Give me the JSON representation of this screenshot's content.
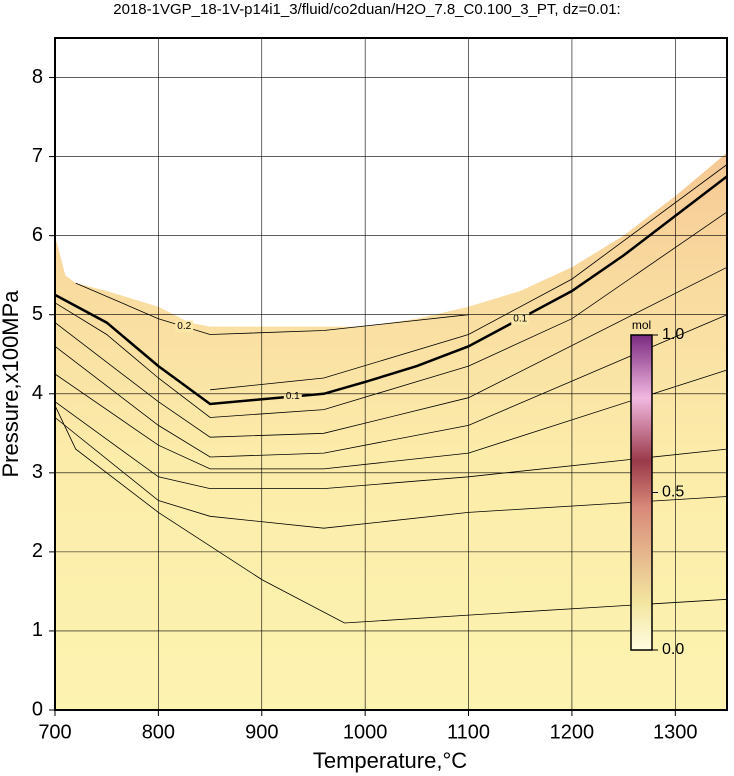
{
  "chart_data": {
    "type": "contour",
    "title": "2018-1VGP_18-1V-p14i1_3/fluid/co2duan/H2O_7.8_C0.100_3_PT, dz=0.01:",
    "x_label": "Temperature,°C",
    "y_label": "Pressure,x100MPa",
    "xlim": [
      700,
      1350
    ],
    "ylim": [
      0,
      8.5
    ],
    "xticks": [
      700,
      800,
      900,
      1000,
      1100,
      1200,
      1300
    ],
    "yticks": [
      0,
      1,
      2,
      3,
      4,
      5,
      6,
      7,
      8
    ],
    "grid": true,
    "field_boundary": {
      "x": [
        700,
        710,
        720,
        750,
        800,
        830,
        850,
        900,
        960,
        1000,
        1050,
        1100,
        1150,
        1200,
        1250,
        1300,
        1350
      ],
      "y": [
        6.0,
        5.5,
        5.4,
        5.3,
        5.1,
        4.9,
        4.85,
        4.85,
        4.85,
        4.85,
        4.95,
        5.1,
        5.3,
        5.6,
        6.0,
        6.5,
        7.05
      ]
    },
    "contours": [
      {
        "level": 0.2,
        "x": [
          720,
          800,
          850,
          960,
          1100
        ],
        "y": [
          5.4,
          4.95,
          4.75,
          4.8,
          5.0
        ]
      },
      {
        "level": 0.1,
        "x": [
          700,
          750,
          800,
          850,
          900,
          960,
          1000,
          1050,
          1100,
          1150,
          1200,
          1250,
          1300,
          1350
        ],
        "y": [
          5.25,
          4.9,
          4.35,
          3.87,
          3.93,
          4.0,
          4.15,
          4.35,
          4.6,
          4.95,
          5.3,
          5.75,
          6.25,
          6.75
        ]
      },
      {
        "x": [
          850,
          960,
          1100,
          1200,
          1350
        ],
        "y": [
          4.05,
          4.2,
          4.75,
          5.45,
          6.9
        ]
      },
      {
        "x": [
          700,
          750,
          800,
          850,
          960,
          1100,
          1200,
          1350
        ],
        "y": [
          5.15,
          4.75,
          4.2,
          3.7,
          3.8,
          4.35,
          4.95,
          6.3
        ]
      },
      {
        "x": [
          700,
          800,
          850,
          960,
          1100,
          1350
        ],
        "y": [
          4.9,
          3.9,
          3.45,
          3.5,
          3.95,
          5.6
        ]
      },
      {
        "x": [
          700,
          800,
          850,
          960,
          1100,
          1350
        ],
        "y": [
          4.6,
          3.6,
          3.2,
          3.25,
          3.6,
          5.0
        ]
      },
      {
        "x": [
          700,
          800,
          850,
          960,
          1100,
          1350
        ],
        "y": [
          4.25,
          3.35,
          3.05,
          3.05,
          3.25,
          4.3
        ]
      },
      {
        "x": [
          700,
          800,
          850,
          960,
          1100,
          1350
        ],
        "y": [
          3.9,
          2.95,
          2.8,
          2.8,
          2.95,
          3.3
        ]
      },
      {
        "x": [
          700,
          800,
          850,
          960,
          1100,
          1350
        ],
        "y": [
          3.7,
          2.65,
          2.45,
          2.3,
          2.5,
          2.7
        ]
      },
      {
        "x": [
          700,
          720,
          800,
          900,
          980,
          1100,
          1350
        ],
        "y": [
          3.85,
          3.3,
          2.5,
          1.65,
          1.1,
          1.2,
          1.4
        ]
      }
    ],
    "colorbar": {
      "label": "mol",
      "clim": [
        0,
        1
      ],
      "ticks": [
        {
          "value": 0,
          "label": "0.0"
        },
        {
          "value": 0.5,
          "label": "0.5"
        },
        {
          "value": 1,
          "label": "1.0"
        }
      ]
    }
  }
}
